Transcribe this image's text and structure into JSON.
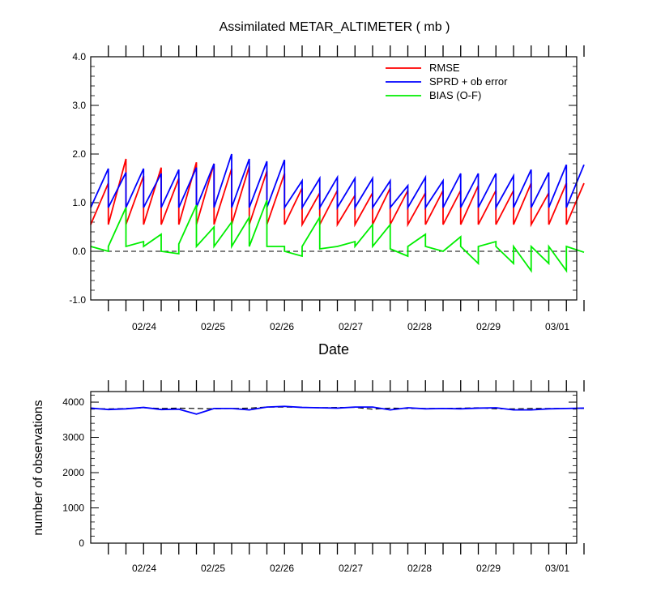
{
  "chart_data": [
    {
      "type": "line",
      "title": "Assimilated METAR_ALTIMETER ( mb )",
      "xlabel": "Date",
      "ylabel": "",
      "ylim": [
        -1.0,
        4.0
      ],
      "yticks": [
        "-1.0",
        "0.0",
        "1.0",
        "2.0",
        "3.0",
        "4.0"
      ],
      "xtick_labels": [
        "02/24",
        "02/25",
        "02/26",
        "02/27",
        "02/28",
        "02/29",
        "03/01"
      ],
      "grid": false,
      "legend_position": "top-right",
      "zero_line": "dashed",
      "series": [
        {
          "name": "RMSE",
          "color": "#ff0000",
          "prior": [
            0.55,
            0.55,
            0.55,
            0.55,
            0.55,
            0.55,
            0.55,
            0.55,
            0.55,
            0.55,
            0.55,
            0.55,
            0.55,
            0.55,
            0.55,
            0.55,
            0.55,
            0.55,
            0.55,
            0.55,
            0.55,
            0.55,
            0.55,
            0.55,
            0.55,
            0.55,
            0.55,
            0.55
          ],
          "posterior": [
            1.4,
            1.9,
            1.55,
            1.72,
            1.5,
            1.83,
            1.8,
            1.7,
            1.75,
            1.65,
            1.6,
            1.3,
            1.2,
            1.25,
            1.15,
            1.2,
            1.3,
            1.25,
            1.2,
            1.25,
            1.25,
            1.35,
            1.25,
            1.25,
            1.4,
            1.2,
            1.4,
            1.4
          ]
        },
        {
          "name": "SPRD + ob error",
          "color": "#0000ff",
          "prior": [
            0.9,
            0.9,
            0.9,
            0.9,
            0.9,
            0.9,
            0.9,
            0.9,
            0.9,
            0.9,
            0.9,
            0.9,
            0.9,
            0.9,
            0.9,
            0.9,
            0.9,
            0.9,
            0.9,
            0.9,
            0.9,
            0.9,
            0.9,
            0.9,
            0.9,
            0.9,
            0.9,
            0.9
          ],
          "posterior": [
            1.7,
            1.62,
            1.7,
            1.6,
            1.68,
            1.72,
            1.8,
            2.0,
            1.9,
            1.85,
            1.88,
            1.45,
            1.5,
            1.52,
            1.5,
            1.5,
            1.45,
            1.35,
            1.52,
            1.45,
            1.6,
            1.6,
            1.6,
            1.55,
            1.68,
            1.62,
            1.78,
            1.78
          ]
        },
        {
          "name": "BIAS (O-F)",
          "color": "#00ee00",
          "prior": [
            0.1,
            0.1,
            0.1,
            0.1,
            0.0,
            0.15,
            0.1,
            0.1,
            0.1,
            0.1,
            0.1,
            0.0,
            0.1,
            0.05,
            0.1,
            0.1,
            0.1,
            0.05,
            0.1,
            0.1,
            0.0,
            0.1,
            0.1,
            0.1,
            0.1,
            0.1,
            0.1,
            0.1
          ],
          "posterior": [
            0.0,
            0.9,
            0.2,
            0.35,
            -0.05,
            0.95,
            0.5,
            0.6,
            0.7,
            1.05,
            0.1,
            -0.1,
            0.7,
            0.1,
            0.2,
            0.55,
            0.55,
            -0.1,
            0.35,
            0.0,
            0.3,
            -0.25,
            0.2,
            -0.25,
            -0.4,
            -0.25,
            -0.4,
            -0.02
          ]
        }
      ]
    },
    {
      "type": "line",
      "title": "",
      "xlabel": "",
      "ylabel": "number of observations",
      "ylim": [
        0,
        4300
      ],
      "yticks": [
        "0",
        "1000",
        "2000",
        "3000",
        "4000"
      ],
      "xtick_labels": [
        "02/24",
        "02/25",
        "02/26",
        "02/27",
        "02/28",
        "02/29",
        "03/01"
      ],
      "grid": false,
      "series": [
        {
          "name": "",
          "color": "#000000",
          "style": "dashed",
          "values": [
            3820,
            3810,
            3820,
            3840,
            3820,
            3830,
            3820,
            3810,
            3820,
            3830,
            3860,
            3860,
            3850,
            3840,
            3850,
            3850,
            3800,
            3830,
            3820,
            3820,
            3820,
            3830,
            3840,
            3810,
            3810,
            3820,
            3820,
            3820,
            3820
          ]
        },
        {
          "name": "",
          "color": "#0000ff",
          "style": "solid",
          "values": [
            3830,
            3790,
            3810,
            3850,
            3790,
            3800,
            3660,
            3820,
            3820,
            3780,
            3860,
            3880,
            3850,
            3840,
            3830,
            3860,
            3860,
            3780,
            3840,
            3810,
            3820,
            3810,
            3830,
            3840,
            3780,
            3780,
            3810,
            3820,
            3830
          ]
        }
      ]
    }
  ]
}
